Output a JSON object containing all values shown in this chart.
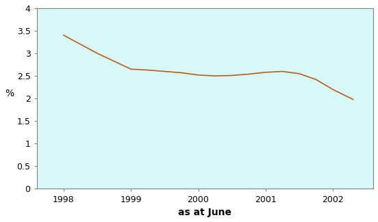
{
  "x": [
    1998.0,
    1998.5,
    1999.0,
    1999.25,
    1999.5,
    1999.75,
    2000.0,
    2000.25,
    2000.5,
    2000.75,
    2001.0,
    2001.25,
    2001.5,
    2001.75,
    2002.0,
    2002.3
  ],
  "y": [
    3.4,
    3.0,
    2.65,
    2.63,
    2.6,
    2.57,
    2.52,
    2.5,
    2.51,
    2.54,
    2.58,
    2.6,
    2.55,
    2.42,
    2.2,
    1.98
  ],
  "line_color": "#b85c1a",
  "background_color": "#d8f8f8",
  "outer_background": "#ffffff",
  "xlabel": "as at June",
  "ylabel": "%",
  "xlim": [
    1997.6,
    2002.6
  ],
  "ylim": [
    0,
    4.0
  ],
  "yticks": [
    0,
    0.5,
    1.0,
    1.5,
    2.0,
    2.5,
    3.0,
    3.5,
    4.0
  ],
  "xticks": [
    1998,
    1999,
    2000,
    2001,
    2002
  ],
  "xlabel_fontsize": 10,
  "ylabel_fontsize": 10,
  "tick_fontsize": 9,
  "linewidth": 1.2
}
